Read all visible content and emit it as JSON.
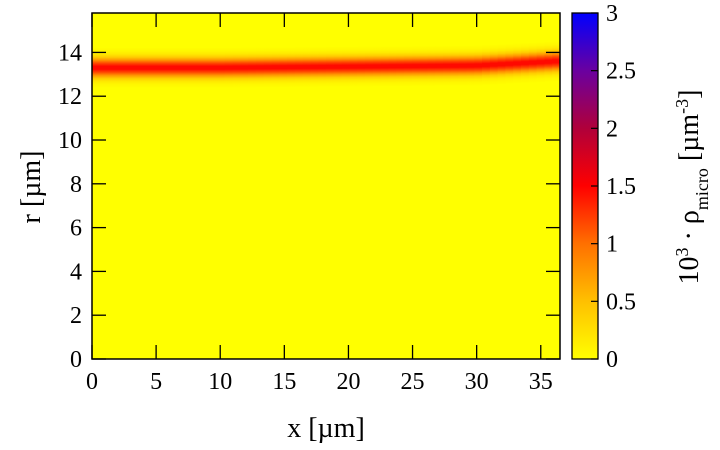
{
  "chart_data": {
    "type": "heatmap",
    "title": "",
    "xlabel": "x [µm]",
    "ylabel": "r [µm]",
    "colorbar_label": {
      "base": "10",
      "exp": "3",
      "dot": " · ",
      "symbol": "ρ",
      "sub": "micro",
      "unit_open": " [µm",
      "unit_exp": "-3",
      "unit_close": "]"
    },
    "xlim": [
      0,
      36.5
    ],
    "ylim": [
      0,
      15.8
    ],
    "clim": [
      0,
      3
    ],
    "x_ticks": [
      "0",
      "5",
      "10",
      "15",
      "20",
      "25",
      "30",
      "35"
    ],
    "x_tick_values": [
      0,
      5,
      10,
      15,
      20,
      25,
      30,
      35
    ],
    "y_ticks": [
      "0",
      "2",
      "4",
      "6",
      "8",
      "10",
      "12",
      "14"
    ],
    "y_tick_values": [
      0,
      2,
      4,
      6,
      8,
      10,
      12,
      14
    ],
    "colorbar_ticks": [
      "0",
      "0.5",
      "1",
      "1.5",
      "2",
      "2.5",
      "3"
    ],
    "colorbar_tick_values": [
      0,
      0.5,
      1,
      1.5,
      2,
      2.5,
      3
    ],
    "colormap": [
      "#ffff00",
      "#ffc000",
      "#ff7000",
      "#ff0000",
      "#b0003a",
      "#6a00a0",
      "#0000ff"
    ],
    "background_value": 0,
    "ridge": {
      "peak_value": 1.5,
      "width_r": 0.3,
      "center_r": [
        {
          "x": 0,
          "r": 13.3
        },
        {
          "x": 10,
          "r": 13.3
        },
        {
          "x": 20,
          "r": 13.35
        },
        {
          "x": 30,
          "r": 13.4
        },
        {
          "x": 36.5,
          "r": 13.6
        }
      ]
    },
    "grid": false
  }
}
